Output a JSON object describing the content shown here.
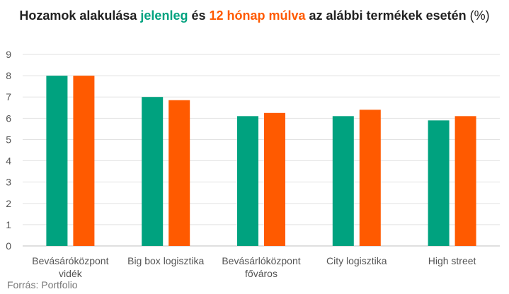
{
  "chart_data": {
    "type": "bar",
    "title_parts": [
      {
        "text": "Hozamok alakulása ",
        "style": "bold"
      },
      {
        "text": "jelenleg",
        "style": "green"
      },
      {
        "text": " és ",
        "style": "bold"
      },
      {
        "text": "12 hónap múlva",
        "style": "orange"
      },
      {
        "text": " az alábbi termékek esetén",
        "style": "bold"
      },
      {
        "text": " (%)",
        "style": "normal"
      }
    ],
    "categories": [
      [
        "Bevásáróközpont",
        "vidék"
      ],
      [
        "Big box logisztika"
      ],
      [
        "Bevásárlóközpont",
        "főváros"
      ],
      [
        "City logisztika"
      ],
      [
        "High street"
      ]
    ],
    "series": [
      {
        "color": "#00A27F",
        "values": [
          8.0,
          7.0,
          6.1,
          6.1,
          5.9
        ]
      },
      {
        "color": "#FF5A00",
        "values": [
          8.0,
          6.85,
          6.25,
          6.4,
          6.1
        ]
      }
    ],
    "ylim": [
      0,
      9
    ],
    "yticks": [
      "0",
      "1",
      "2",
      "3",
      "4",
      "5",
      "6",
      "7",
      "8",
      "9"
    ],
    "grid": true,
    "legend": "none",
    "source": "Forrás: Portfolio"
  }
}
